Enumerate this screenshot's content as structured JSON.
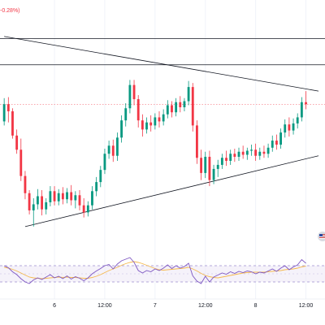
{
  "header": {
    "change_text": "-0.28%)"
  },
  "icons": {
    "flag_badge": "us-flag-icon"
  },
  "colors": {
    "up": "#089981",
    "down": "#f23645",
    "trendline": "#131722",
    "rsi_line": "#7e57c2",
    "rsi_ma": "#f5b94f",
    "rsi_band": "#ede7f6",
    "price_line": "#f23645"
  },
  "chart_data": [
    {
      "type": "candlestick",
      "x_tick_labels": [
        "6",
        "12:00",
        "7",
        "12:00",
        "8",
        "12:00"
      ],
      "x_ticks_at": [
        12,
        24,
        36,
        48,
        60,
        72
      ],
      "candles": [
        {
          "t": 0,
          "o": -0.34,
          "h": -0.11,
          "l": -0.38,
          "c": -0.17
        },
        {
          "t": 1,
          "o": -0.17,
          "h": -0.1,
          "l": -0.35,
          "c": -0.24
        },
        {
          "t": 2,
          "o": -0.24,
          "h": -0.21,
          "l": -0.51,
          "c": -0.48
        },
        {
          "t": 3,
          "o": -0.48,
          "h": -0.42,
          "l": -0.66,
          "c": -0.62
        },
        {
          "t": 4,
          "o": -0.62,
          "h": -0.51,
          "l": -0.93,
          "c": -0.88
        },
        {
          "t": 5,
          "o": -0.88,
          "h": -0.83,
          "l": -1.11,
          "c": -1.05
        },
        {
          "t": 6,
          "o": -1.05,
          "h": -1.02,
          "l": -1.26,
          "c": -1.22
        },
        {
          "t": 7,
          "o": -1.22,
          "h": -1.1,
          "l": -1.38,
          "c": -1.16
        },
        {
          "t": 8,
          "o": -1.16,
          "h": -1.01,
          "l": -1.21,
          "c": -1.08
        },
        {
          "t": 9,
          "o": -1.08,
          "h": -1.02,
          "l": -1.27,
          "c": -1.21
        },
        {
          "t": 10,
          "o": -1.21,
          "h": -1.1,
          "l": -1.26,
          "c": -1.14
        },
        {
          "t": 11,
          "o": -1.14,
          "h": -0.98,
          "l": -1.18,
          "c": -1.03
        },
        {
          "t": 12,
          "o": -1.03,
          "h": -0.98,
          "l": -1.17,
          "c": -1.13
        },
        {
          "t": 13,
          "o": -1.13,
          "h": -1.01,
          "l": -1.17,
          "c": -1.05
        },
        {
          "t": 14,
          "o": -1.05,
          "h": -0.99,
          "l": -1.16,
          "c": -1.11
        },
        {
          "t": 15,
          "o": -1.11,
          "h": -1.0,
          "l": -1.15,
          "c": -1.04
        },
        {
          "t": 16,
          "o": -1.04,
          "h": -0.97,
          "l": -1.17,
          "c": -1.12
        },
        {
          "t": 17,
          "o": -1.12,
          "h": -1.03,
          "l": -1.2,
          "c": -1.07
        },
        {
          "t": 18,
          "o": -1.07,
          "h": -1.02,
          "l": -1.22,
          "c": -1.17
        },
        {
          "t": 19,
          "o": -1.17,
          "h": -1.1,
          "l": -1.29,
          "c": -1.24
        },
        {
          "t": 20,
          "o": -1.24,
          "h": -1.13,
          "l": -1.28,
          "c": -1.17
        },
        {
          "t": 21,
          "o": -1.17,
          "h": -0.98,
          "l": -1.21,
          "c": -1.03
        },
        {
          "t": 22,
          "o": -1.03,
          "h": -0.89,
          "l": -1.08,
          "c": -0.94
        },
        {
          "t": 23,
          "o": -0.94,
          "h": -0.78,
          "l": -0.99,
          "c": -0.82
        },
        {
          "t": 24,
          "o": -0.82,
          "h": -0.61,
          "l": -0.86,
          "c": -0.66
        },
        {
          "t": 25,
          "o": -0.66,
          "h": -0.53,
          "l": -0.71,
          "c": -0.58
        },
        {
          "t": 26,
          "o": -0.58,
          "h": -0.52,
          "l": -0.74,
          "c": -0.68
        },
        {
          "t": 27,
          "o": -0.68,
          "h": -0.45,
          "l": -0.73,
          "c": -0.5
        },
        {
          "t": 28,
          "o": -0.5,
          "h": -0.28,
          "l": -0.55,
          "c": -0.33
        },
        {
          "t": 29,
          "o": -0.33,
          "h": -0.16,
          "l": -0.39,
          "c": -0.21
        },
        {
          "t": 30,
          "o": -0.21,
          "h": 0.07,
          "l": -0.26,
          "c": 0.02
        },
        {
          "t": 31,
          "o": 0.02,
          "h": 0.07,
          "l": -0.18,
          "c": -0.12
        },
        {
          "t": 32,
          "o": -0.12,
          "h": -0.08,
          "l": -0.4,
          "c": -0.33
        },
        {
          "t": 33,
          "o": -0.33,
          "h": -0.27,
          "l": -0.49,
          "c": -0.42
        },
        {
          "t": 34,
          "o": -0.42,
          "h": -0.3,
          "l": -0.46,
          "c": -0.35
        },
        {
          "t": 35,
          "o": -0.35,
          "h": -0.28,
          "l": -0.44,
          "c": -0.38
        },
        {
          "t": 36,
          "o": -0.38,
          "h": -0.26,
          "l": -0.42,
          "c": -0.3
        },
        {
          "t": 37,
          "o": -0.3,
          "h": -0.24,
          "l": -0.4,
          "c": -0.34
        },
        {
          "t": 38,
          "o": -0.34,
          "h": -0.22,
          "l": -0.38,
          "c": -0.27
        },
        {
          "t": 39,
          "o": -0.27,
          "h": -0.13,
          "l": -0.31,
          "c": -0.18
        },
        {
          "t": 40,
          "o": -0.18,
          "h": -0.14,
          "l": -0.3,
          "c": -0.25
        },
        {
          "t": 41,
          "o": -0.25,
          "h": -0.11,
          "l": -0.29,
          "c": -0.15
        },
        {
          "t": 42,
          "o": -0.15,
          "h": -0.09,
          "l": -0.25,
          "c": -0.2
        },
        {
          "t": 43,
          "o": -0.2,
          "h": -0.11,
          "l": -0.24,
          "c": -0.14
        },
        {
          "t": 44,
          "o": -0.14,
          "h": 0.06,
          "l": -0.18,
          "c": 0.0
        },
        {
          "t": 45,
          "o": 0.0,
          "h": 0.04,
          "l": -0.44,
          "c": -0.38
        },
        {
          "t": 46,
          "o": -0.38,
          "h": -0.33,
          "l": -0.76,
          "c": -0.7
        },
        {
          "t": 47,
          "o": -0.7,
          "h": -0.62,
          "l": -0.92,
          "c": -0.85
        },
        {
          "t": 48,
          "o": -0.85,
          "h": -0.64,
          "l": -0.9,
          "c": -0.69
        },
        {
          "t": 49,
          "o": -0.69,
          "h": -0.63,
          "l": -0.98,
          "c": -0.92
        },
        {
          "t": 50,
          "o": -0.92,
          "h": -0.77,
          "l": -0.96,
          "c": -0.81
        },
        {
          "t": 51,
          "o": -0.81,
          "h": -0.72,
          "l": -0.89,
          "c": -0.77
        },
        {
          "t": 52,
          "o": -0.77,
          "h": -0.66,
          "l": -0.81,
          "c": -0.7
        },
        {
          "t": 53,
          "o": -0.7,
          "h": -0.63,
          "l": -0.78,
          "c": -0.73
        },
        {
          "t": 54,
          "o": -0.73,
          "h": -0.62,
          "l": -0.77,
          "c": -0.66
        },
        {
          "t": 55,
          "o": -0.66,
          "h": -0.61,
          "l": -0.74,
          "c": -0.69
        },
        {
          "t": 56,
          "o": -0.69,
          "h": -0.6,
          "l": -0.73,
          "c": -0.64
        },
        {
          "t": 57,
          "o": -0.64,
          "h": -0.58,
          "l": -0.71,
          "c": -0.67
        },
        {
          "t": 58,
          "o": -0.67,
          "h": -0.6,
          "l": -0.72,
          "c": -0.63
        },
        {
          "t": 59,
          "o": -0.63,
          "h": -0.57,
          "l": -0.68,
          "c": -0.62
        },
        {
          "t": 60,
          "o": -0.62,
          "h": -0.56,
          "l": -0.73,
          "c": -0.68
        },
        {
          "t": 61,
          "o": -0.68,
          "h": -0.6,
          "l": -0.72,
          "c": -0.64
        },
        {
          "t": 62,
          "o": -0.64,
          "h": -0.58,
          "l": -0.7,
          "c": -0.66
        },
        {
          "t": 63,
          "o": -0.66,
          "h": -0.56,
          "l": -0.7,
          "c": -0.6
        },
        {
          "t": 64,
          "o": -0.6,
          "h": -0.48,
          "l": -0.64,
          "c": -0.53
        },
        {
          "t": 65,
          "o": -0.53,
          "h": -0.47,
          "l": -0.62,
          "c": -0.57
        },
        {
          "t": 66,
          "o": -0.57,
          "h": -0.41,
          "l": -0.61,
          "c": -0.45
        },
        {
          "t": 67,
          "o": -0.45,
          "h": -0.32,
          "l": -0.5,
          "c": -0.37
        },
        {
          "t": 68,
          "o": -0.37,
          "h": -0.3,
          "l": -0.49,
          "c": -0.43
        },
        {
          "t": 69,
          "o": -0.43,
          "h": -0.31,
          "l": -0.47,
          "c": -0.36
        },
        {
          "t": 70,
          "o": -0.36,
          "h": -0.26,
          "l": -0.41,
          "c": -0.3
        },
        {
          "t": 71,
          "o": -0.3,
          "h": -0.1,
          "l": -0.34,
          "c": -0.15
        },
        {
          "t": 72,
          "o": -0.15,
          "h": -0.04,
          "l": -0.22,
          "c": -0.17
        }
      ],
      "horizontal_lines": [
        0.48,
        0.22
      ],
      "current_price_line": -0.17,
      "trendlines": [
        {
          "t1": 0,
          "v1": 0.5,
          "t2": 75,
          "v2": -0.04
        },
        {
          "t1": 5,
          "v1": -1.38,
          "t2": 75,
          "v2": -0.68
        }
      ],
      "y_range": [
        -1.55,
        0.7
      ],
      "x_range": [
        -1,
        75
      ]
    },
    {
      "type": "line",
      "name": "RSI",
      "values": [
        70,
        65,
        55,
        48,
        38,
        30,
        26,
        35,
        40,
        36,
        42,
        48,
        40,
        44,
        38,
        45,
        37,
        43,
        39,
        33,
        40,
        50,
        57,
        63,
        70,
        73,
        62,
        74,
        82,
        86,
        90,
        78,
        58,
        52,
        58,
        55,
        62,
        58,
        64,
        72,
        63,
        70,
        64,
        68,
        76,
        45,
        32,
        26,
        44,
        30,
        42,
        47,
        52,
        49,
        55,
        51,
        56,
        53,
        57,
        55,
        50,
        54,
        52,
        57,
        62,
        56,
        64,
        70,
        60,
        67,
        72,
        85,
        76
      ],
      "ma": [
        66,
        64,
        61,
        57,
        52,
        47,
        42,
        40,
        39,
        38,
        39,
        40,
        41,
        42,
        41,
        42,
        41,
        41,
        40,
        39,
        39,
        41,
        44,
        48,
        53,
        58,
        62,
        66,
        71,
        75,
        78,
        80,
        78,
        75,
        71,
        67,
        63,
        60,
        59,
        60,
        61,
        62,
        63,
        64,
        66,
        62,
        57,
        51,
        46,
        43,
        41,
        40,
        42,
        44,
        46,
        48,
        50,
        52,
        53,
        54,
        54,
        54,
        54,
        55,
        56,
        57,
        58,
        60,
        61,
        62,
        64,
        67,
        69
      ],
      "levels": [
        70,
        30
      ],
      "ylim": [
        0,
        100
      ]
    }
  ]
}
